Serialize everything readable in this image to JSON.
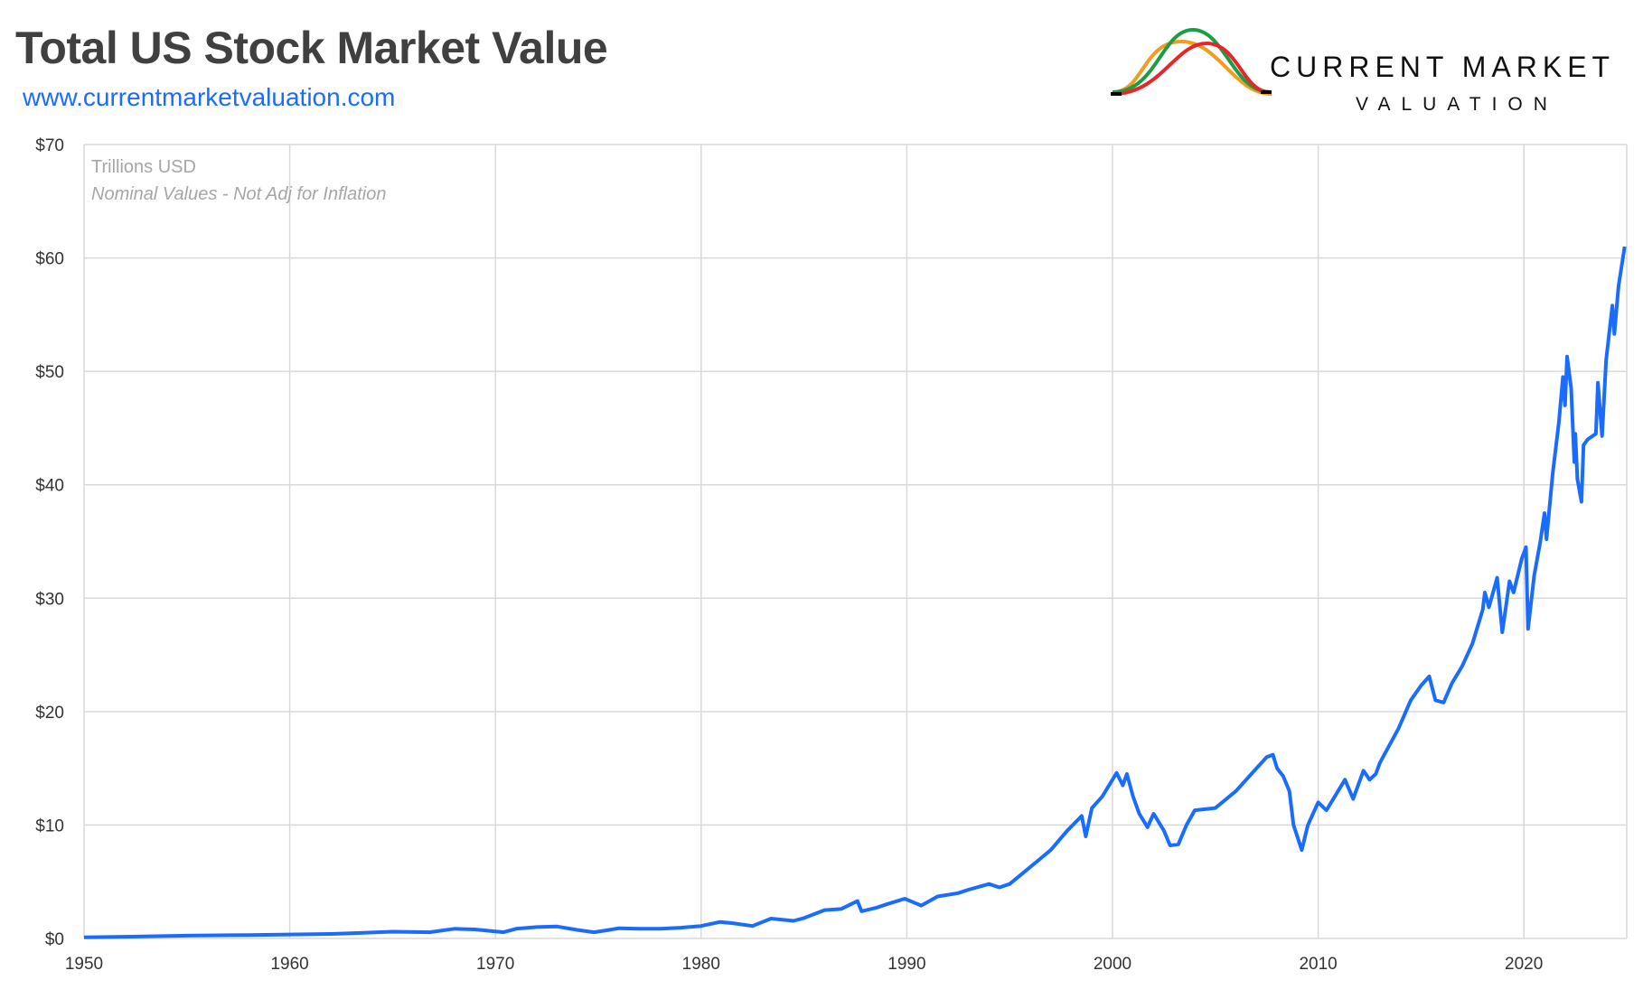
{
  "header": {
    "title": "Total US Stock Market Value",
    "url": "www.currentmarketvaluation.com"
  },
  "logo": {
    "line1": "CURRENT MARKET",
    "line2": "VALUATION",
    "colors": [
      "#f39c1f",
      "#1a9e45",
      "#e8262a",
      "#000000"
    ]
  },
  "chart_data": {
    "type": "line",
    "title": "Total US Stock Market Value",
    "annotations": [
      "Trillions USD",
      "Nominal Values - Not Adj for Inflation"
    ],
    "xlim": [
      1950,
      2025
    ],
    "ylim": [
      0,
      70
    ],
    "x_ticks": [
      "1950",
      "1960",
      "1970",
      "1980",
      "1990",
      "2000",
      "2010",
      "2020"
    ],
    "y_ticks": [
      "$0",
      "$10",
      "$20",
      "$30",
      "$40",
      "$50",
      "$60",
      "$70"
    ],
    "grid": true,
    "line_color": "#1a6cff",
    "series": [
      {
        "points": [
          [
            1950,
            0.1
          ],
          [
            1952,
            0.15
          ],
          [
            1955,
            0.25
          ],
          [
            1958,
            0.3
          ],
          [
            1960,
            0.35
          ],
          [
            1962,
            0.4
          ],
          [
            1963,
            0.45
          ],
          [
            1965,
            0.6
          ],
          [
            1966.8,
            0.55
          ],
          [
            1968,
            0.85
          ],
          [
            1969,
            0.8
          ],
          [
            1970.4,
            0.55
          ],
          [
            1971,
            0.85
          ],
          [
            1972,
            1.0
          ],
          [
            1973,
            1.05
          ],
          [
            1974,
            0.75
          ],
          [
            1974.8,
            0.55
          ],
          [
            1975.5,
            0.75
          ],
          [
            1976,
            0.9
          ],
          [
            1977,
            0.85
          ],
          [
            1978,
            0.85
          ],
          [
            1979,
            0.95
          ],
          [
            1980,
            1.1
          ],
          [
            1980.9,
            1.45
          ],
          [
            1981.5,
            1.35
          ],
          [
            1982.5,
            1.1
          ],
          [
            1983.4,
            1.75
          ],
          [
            1984.5,
            1.55
          ],
          [
            1985,
            1.8
          ],
          [
            1986,
            2.5
          ],
          [
            1986.8,
            2.6
          ],
          [
            1987.6,
            3.3
          ],
          [
            1987.8,
            2.4
          ],
          [
            1988.5,
            2.7
          ],
          [
            1989,
            3.0
          ],
          [
            1989.9,
            3.5
          ],
          [
            1990.7,
            2.9
          ],
          [
            1991.5,
            3.7
          ],
          [
            1992.5,
            4.0
          ],
          [
            1993,
            4.3
          ],
          [
            1994,
            4.8
          ],
          [
            1994.5,
            4.5
          ],
          [
            1995,
            4.8
          ],
          [
            1996,
            6.3
          ],
          [
            1997,
            7.8
          ],
          [
            1997.8,
            9.5
          ],
          [
            1998.5,
            10.8
          ],
          [
            1998.7,
            9.0
          ],
          [
            1999,
            11.5
          ],
          [
            1999.5,
            12.5
          ],
          [
            2000,
            14.0
          ],
          [
            2000.2,
            14.6
          ],
          [
            2000.5,
            13.5
          ],
          [
            2000.7,
            14.5
          ],
          [
            2001,
            12.5
          ],
          [
            2001.3,
            11.0
          ],
          [
            2001.7,
            9.8
          ],
          [
            2002,
            11.0
          ],
          [
            2002.5,
            9.5
          ],
          [
            2002.8,
            8.2
          ],
          [
            2003.2,
            8.3
          ],
          [
            2003.6,
            10.0
          ],
          [
            2004,
            11.3
          ],
          [
            2005,
            11.5
          ],
          [
            2006,
            13.0
          ],
          [
            2007,
            15.0
          ],
          [
            2007.5,
            16.0
          ],
          [
            2007.8,
            16.2
          ],
          [
            2008,
            15.0
          ],
          [
            2008.3,
            14.3
          ],
          [
            2008.6,
            13.0
          ],
          [
            2008.8,
            10.0
          ],
          [
            2009.2,
            7.8
          ],
          [
            2009.5,
            10.0
          ],
          [
            2010,
            12.0
          ],
          [
            2010.4,
            11.3
          ],
          [
            2010.9,
            12.8
          ],
          [
            2011.3,
            14.0
          ],
          [
            2011.7,
            12.3
          ],
          [
            2012.2,
            14.8
          ],
          [
            2012.5,
            14.0
          ],
          [
            2012.8,
            14.5
          ],
          [
            2013,
            15.5
          ],
          [
            2013.9,
            18.5
          ],
          [
            2014.5,
            21.0
          ],
          [
            2015,
            22.3
          ],
          [
            2015.4,
            23.1
          ],
          [
            2015.7,
            21.0
          ],
          [
            2016.1,
            20.8
          ],
          [
            2016.5,
            22.5
          ],
          [
            2017,
            24.0
          ],
          [
            2017.5,
            26.0
          ],
          [
            2018,
            29.0
          ],
          [
            2018.1,
            30.5
          ],
          [
            2018.3,
            29.2
          ],
          [
            2018.7,
            31.8
          ],
          [
            2018.95,
            27.0
          ],
          [
            2019.3,
            31.5
          ],
          [
            2019.5,
            30.5
          ],
          [
            2019.9,
            33.5
          ],
          [
            2020.1,
            34.5
          ],
          [
            2020.2,
            27.3
          ],
          [
            2020.5,
            32.0
          ],
          [
            2020.8,
            35.0
          ],
          [
            2021,
            37.5
          ],
          [
            2021.1,
            35.2
          ],
          [
            2021.4,
            41.0
          ],
          [
            2021.7,
            45.5
          ],
          [
            2021.9,
            49.5
          ],
          [
            2022,
            47.0
          ],
          [
            2022.1,
            51.3
          ],
          [
            2022.3,
            48.5
          ],
          [
            2022.45,
            42.0
          ],
          [
            2022.5,
            44.5
          ],
          [
            2022.6,
            40.5
          ],
          [
            2022.8,
            38.5
          ],
          [
            2022.9,
            43.5
          ],
          [
            2023.1,
            44.0
          ],
          [
            2023.5,
            44.5
          ],
          [
            2023.6,
            49.0
          ],
          [
            2023.8,
            44.3
          ],
          [
            2024,
            51.0
          ],
          [
            2024.3,
            55.8
          ],
          [
            2024.4,
            53.3
          ],
          [
            2024.6,
            57.5
          ],
          [
            2024.9,
            61.0
          ]
        ]
      }
    ]
  }
}
